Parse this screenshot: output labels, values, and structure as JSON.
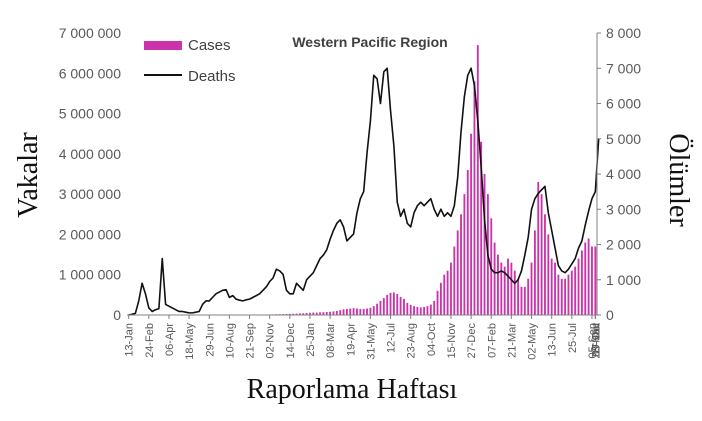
{
  "chart_data": {
    "type": "bar+line",
    "title": "Western Pacific Region",
    "xlabel": "Raporlama Haftası",
    "ylabel_left": "Vakalar",
    "ylabel_right": "Ölümler",
    "legend": [
      {
        "name": "Cases",
        "type": "bar",
        "color": "#cc33aa"
      },
      {
        "name": "Deaths",
        "type": "line",
        "color": "#111111"
      }
    ],
    "legend_position": "top-left",
    "y_left_lim": [
      0,
      7000000
    ],
    "y_right_lim": [
      0,
      8000
    ],
    "y_left_ticks": [
      "0",
      "1 000 000",
      "2 000 000",
      "3 000 000",
      "4 000 000",
      "5 000 000",
      "6 000 000",
      "7 000 000"
    ],
    "y_right_ticks": [
      "0",
      "1 000",
      "2 000",
      "3 000",
      "4 000",
      "5 000",
      "6 000",
      "7 000",
      "8 000"
    ],
    "x_tick_labels": [
      "13-Jan",
      "24-Feb",
      "06-Apr",
      "18-May",
      "29-Jun",
      "10-Aug",
      "21-Sep",
      "02-Nov",
      "14-Dec",
      "25-Jan",
      "08-Mar",
      "19-Apr",
      "31-May",
      "12-Jul",
      "23-Aug",
      "04-Oct",
      "15-Nov",
      "27-Dec",
      "07-Feb",
      "21-Mar",
      "02-May",
      "13-Jun",
      "25-Jul",
      "05-Sep",
      "17-Oct",
      "28-Nov",
      "09-Jan"
    ],
    "x_tick_every_weeks": 6,
    "cases": [
      200,
      300,
      500,
      1200,
      2000,
      2500,
      3000,
      3500,
      4000,
      4000,
      5000,
      5000,
      5000,
      6000,
      6000,
      7000,
      7000,
      7000,
      6000,
      6000,
      6000,
      7000,
      7000,
      8000,
      8000,
      9000,
      9000,
      10000,
      10000,
      11000,
      11000,
      10000,
      9000,
      8000,
      8000,
      7000,
      7000,
      6000,
      6000,
      7000,
      8000,
      10000,
      12000,
      15000,
      18000,
      20000,
      22000,
      25000,
      28000,
      30000,
      35000,
      40000,
      45000,
      50000,
      55000,
      60000,
      60000,
      65000,
      70000,
      75000,
      80000,
      90000,
      100000,
      120000,
      140000,
      150000,
      160000,
      170000,
      160000,
      150000,
      150000,
      160000,
      180000,
      220000,
      280000,
      350000,
      420000,
      500000,
      550000,
      560000,
      520000,
      450000,
      400000,
      300000,
      250000,
      220000,
      200000,
      190000,
      200000,
      220000,
      260000,
      350000,
      600000,
      800000,
      1000000,
      1100000,
      1300000,
      1700000,
      2100000,
      2500000,
      3000000,
      3600000,
      4500000,
      5800000,
      6700000,
      4300000,
      3500000,
      3000000,
      2400000,
      1800000,
      1500000,
      1300000,
      1200000,
      1400000,
      1300000,
      1100000,
      900000,
      700000,
      700000,
      900000,
      1300000,
      2100000,
      3300000,
      3000000,
      2500000,
      2000000,
      1400000,
      1300000,
      1000000,
      900000,
      900000,
      1000000,
      1100000,
      1200000,
      1400000,
      1600000,
      1800000,
      1900000,
      1700000,
      1700000
    ],
    "deaths": [
      0,
      20,
      50,
      400,
      900,
      600,
      200,
      100,
      150,
      180,
      1600,
      300,
      250,
      200,
      150,
      100,
      100,
      80,
      60,
      60,
      80,
      100,
      300,
      400,
      400,
      500,
      600,
      650,
      700,
      720,
      500,
      550,
      450,
      420,
      400,
      430,
      450,
      500,
      550,
      600,
      700,
      800,
      950,
      1050,
      1300,
      1250,
      1150,
      700,
      600,
      600,
      900,
      800,
      700,
      1000,
      1100,
      1200,
      1400,
      1600,
      1700,
      1850,
      2150,
      2400,
      2600,
      2700,
      2500,
      2100,
      2200,
      2300,
      2900,
      3300,
      3500,
      4600,
      5500,
      6800,
      6700,
      6000,
      6900,
      7000,
      5800,
      4800,
      3200,
      2800,
      3000,
      2600,
      2500,
      2900,
      3100,
      3200,
      3100,
      3200,
      3300,
      3000,
      2800,
      3000,
      2800,
      2900,
      2800,
      3100,
      3900,
      5200,
      6200,
      6800,
      7000,
      6500,
      5500,
      4200,
      2700,
      1700,
      1300,
      1200,
      1200,
      1250,
      1200,
      1100,
      1000,
      900,
      1000,
      1250,
      1700,
      2200,
      3000,
      3300,
      3450,
      3550,
      3650,
      2900,
      2400,
      1900,
      1400,
      1250,
      1200,
      1300,
      1450,
      1600,
      1900,
      2100,
      2550,
      2950,
      3300,
      3500,
      5000
    ]
  }
}
